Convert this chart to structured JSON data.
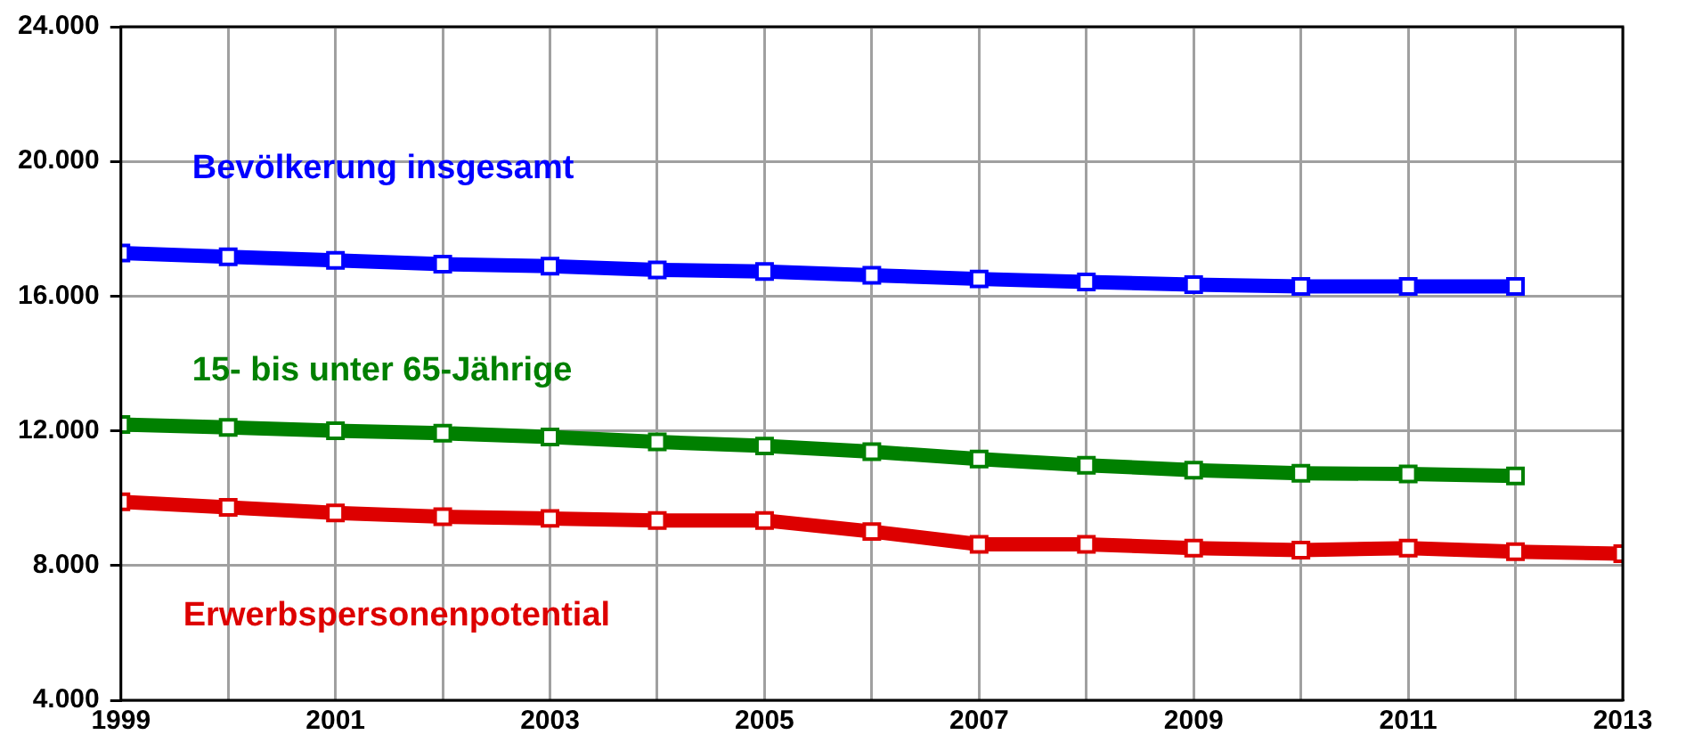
{
  "chart_data": {
    "type": "line",
    "x": [
      1999,
      2000,
      2001,
      2002,
      2003,
      2004,
      2005,
      2006,
      2007,
      2008,
      2009,
      2010,
      2011,
      2012,
      2013
    ],
    "series": [
      {
        "name": "Bevölkerung insgesamt",
        "color": "#0000ff",
        "values": [
          17280,
          17170,
          17060,
          16950,
          16890,
          16780,
          16730,
          16620,
          16510,
          16420,
          16340,
          16290,
          16290,
          16290,
          null
        ]
      },
      {
        "name": "15- bis unter 65-Jährige",
        "color": "#008000",
        "values": [
          12190,
          12100,
          12000,
          11930,
          11820,
          11670,
          11550,
          11380,
          11160,
          10980,
          10830,
          10740,
          10720,
          10660,
          null
        ]
      },
      {
        "name": "Erwerbspersonenpotential",
        "color": "#dd0000",
        "values": [
          9890,
          9730,
          9560,
          9450,
          9400,
          9340,
          9340,
          9010,
          8630,
          8630,
          8520,
          8460,
          8520,
          8410,
          8350
        ]
      }
    ],
    "xlim": [
      1999,
      2013
    ],
    "xticks": [
      1999,
      {
        "value": 2000,
        "label": null
      },
      2001,
      {
        "value": 2002,
        "label": null
      },
      2003,
      {
        "value": 2004,
        "label": null
      },
      2005,
      {
        "value": 2006,
        "label": null
      },
      2007,
      {
        "value": 2008,
        "label": null
      },
      2009,
      {
        "value": 2010,
        "label": null
      },
      2011,
      {
        "value": 2012,
        "label": null
      },
      2013
    ],
    "ylim": [
      4000,
      24000
    ],
    "yticks": [
      {
        "value": 4000,
        "label": "4.000"
      },
      {
        "value": 8000,
        "label": "8.000"
      },
      {
        "value": 12000,
        "label": "12.000"
      },
      {
        "value": 16000,
        "label": "16.000"
      },
      {
        "value": 20000,
        "label": "20.000"
      },
      {
        "value": 24000,
        "label": "24.000"
      }
    ],
    "grid": true,
    "legend": false,
    "marker": "square",
    "line_style": "solid"
  }
}
